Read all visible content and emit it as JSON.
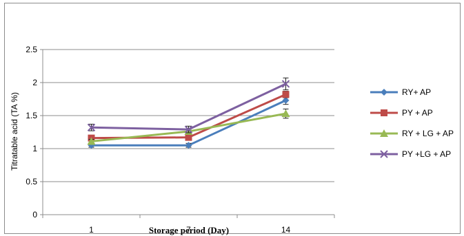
{
  "chart_data": {
    "type": "line",
    "title": "",
    "xlabel": "Storage period (Day)",
    "ylabel": "Titratable acid (TA %)",
    "categories": [
      "1",
      "7",
      "14"
    ],
    "ylim": [
      0,
      2.5
    ],
    "yticks": [
      "0",
      "0.5",
      "1",
      "1.5",
      "2",
      "2.5"
    ],
    "grid": true,
    "legend_position": "right",
    "series": [
      {
        "name": "RY+ AP",
        "values": [
          1.05,
          1.05,
          1.73
        ],
        "errors": [
          0.03,
          0.03,
          0.06
        ],
        "color": "#4a7ebb",
        "marker": "diamond"
      },
      {
        "name": "PY + AP",
        "values": [
          1.16,
          1.17,
          1.82
        ],
        "errors": [
          0.03,
          0.03,
          0.05
        ],
        "color": "#be4b48",
        "marker": "square"
      },
      {
        "name": "RY + LG + AP",
        "values": [
          1.11,
          1.26,
          1.53
        ],
        "errors": [
          0.03,
          0.03,
          0.07
        ],
        "color": "#98b954",
        "marker": "triangle"
      },
      {
        "name": "PY +LG + AP",
        "values": [
          1.32,
          1.29,
          1.98
        ],
        "errors": [
          0.05,
          0.05,
          0.09
        ],
        "color": "#7d60a0",
        "marker": "x"
      }
    ]
  }
}
